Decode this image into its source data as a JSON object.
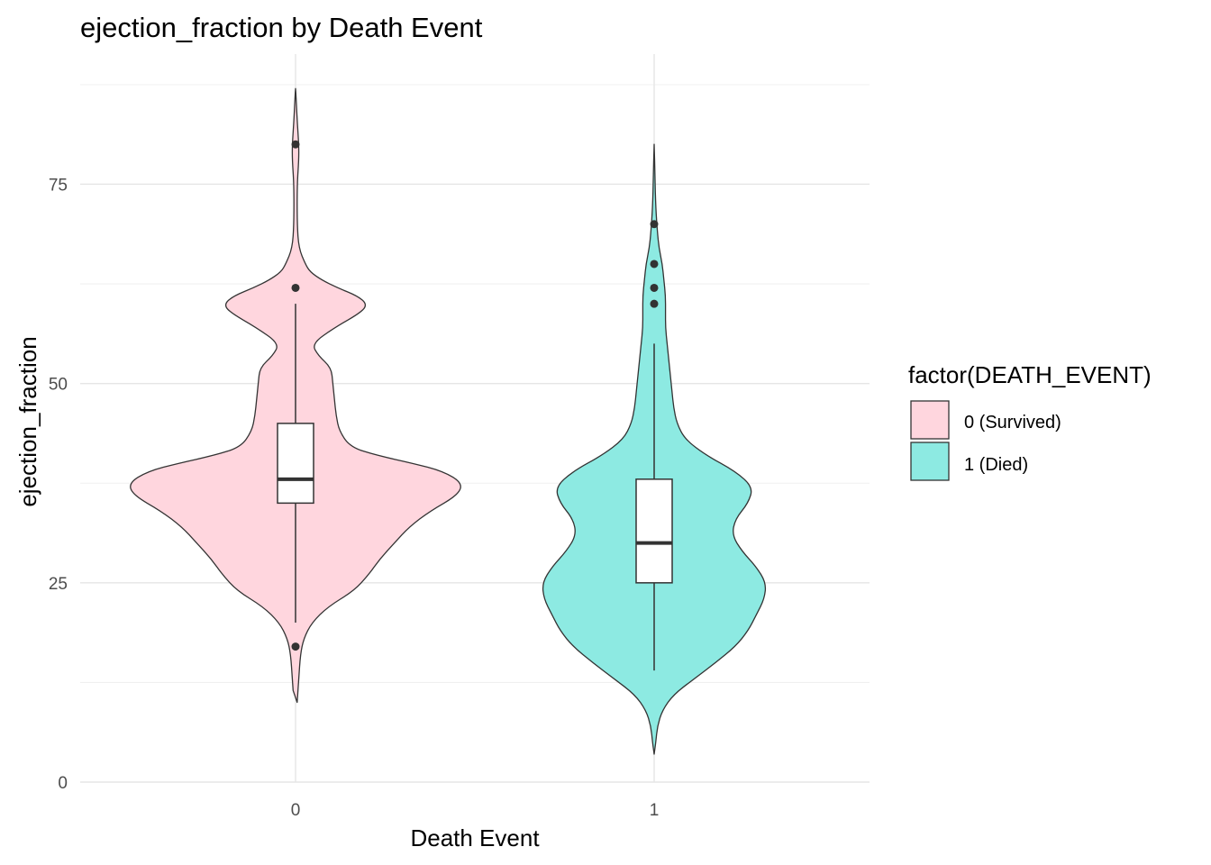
{
  "chart_data": {
    "type": "violin",
    "title": "ejection_fraction by Death Event",
    "xlabel": "Death Event",
    "ylabel": "ejection_fraction",
    "ylim": [
      0,
      87
    ],
    "y_ticks": [
      "0",
      "25",
      "50",
      "75"
    ],
    "categories": [
      "0",
      "1"
    ],
    "legend": {
      "title": "factor(DEATH_EVENT)",
      "position": "right",
      "entries": [
        {
          "label": "0 (Survived)",
          "color": "#F8766D"
        },
        {
          "label": "1 (Died)",
          "color": "#00BFC4"
        }
      ]
    },
    "grid": true,
    "series": [
      {
        "category": "0",
        "fill": "#FFD6DE",
        "box": {
          "min": 20,
          "q1": 35,
          "median": 38,
          "q3": 45,
          "max": 60
        },
        "outliers": [
          80,
          62,
          17
        ],
        "density_profile": [
          [
            10,
            0.01
          ],
          [
            13,
            0.02
          ],
          [
            16,
            0.03
          ],
          [
            18,
            0.05
          ],
          [
            20,
            0.1
          ],
          [
            22,
            0.2
          ],
          [
            24,
            0.36
          ],
          [
            26,
            0.45
          ],
          [
            28,
            0.52
          ],
          [
            30,
            0.61
          ],
          [
            32,
            0.7
          ],
          [
            34,
            0.83
          ],
          [
            36,
            1.0
          ],
          [
            37.5,
            1.03
          ],
          [
            39,
            0.91
          ],
          [
            40,
            0.72
          ],
          [
            41,
            0.5
          ],
          [
            42,
            0.34
          ],
          [
            44,
            0.27
          ],
          [
            46,
            0.25
          ],
          [
            48,
            0.24
          ],
          [
            50,
            0.23
          ],
          [
            52,
            0.22
          ],
          [
            53.5,
            0.14
          ],
          [
            55,
            0.1
          ],
          [
            57,
            0.24
          ],
          [
            59,
            0.41
          ],
          [
            60,
            0.44
          ],
          [
            61,
            0.38
          ],
          [
            62,
            0.26
          ],
          [
            63,
            0.16
          ],
          [
            64,
            0.09
          ],
          [
            65,
            0.06
          ],
          [
            67,
            0.02
          ],
          [
            70,
            0.01
          ],
          [
            75,
            0.01
          ],
          [
            78,
            0.02
          ],
          [
            80,
            0.02
          ],
          [
            83,
            0.01
          ],
          [
            86,
            0.003
          ],
          [
            87,
            0.0
          ]
        ]
      },
      {
        "category": "1",
        "fill": "#8DEAE2",
        "box": {
          "min": 14,
          "q1": 25,
          "median": 30,
          "q3": 38,
          "max": 55
        },
        "outliers": [
          70,
          65,
          62,
          60
        ],
        "density_profile": [
          [
            3.5,
            0.0
          ],
          [
            5,
            0.01
          ],
          [
            7,
            0.02
          ],
          [
            9,
            0.05
          ],
          [
            11,
            0.12
          ],
          [
            13,
            0.25
          ],
          [
            15,
            0.38
          ],
          [
            17,
            0.5
          ],
          [
            19,
            0.58
          ],
          [
            21,
            0.63
          ],
          [
            23,
            0.68
          ],
          [
            25,
            0.69
          ],
          [
            27,
            0.63
          ],
          [
            29,
            0.54
          ],
          [
            31,
            0.48
          ],
          [
            33,
            0.5
          ],
          [
            35,
            0.58
          ],
          [
            37,
            0.61
          ],
          [
            39,
            0.5
          ],
          [
            41,
            0.32
          ],
          [
            43,
            0.19
          ],
          [
            45,
            0.14
          ],
          [
            47,
            0.12
          ],
          [
            49,
            0.11
          ],
          [
            51,
            0.1
          ],
          [
            53,
            0.09
          ],
          [
            55,
            0.08
          ],
          [
            57,
            0.07
          ],
          [
            59,
            0.07
          ],
          [
            61,
            0.07
          ],
          [
            63,
            0.06
          ],
          [
            65,
            0.05
          ],
          [
            67,
            0.03
          ],
          [
            69,
            0.02
          ],
          [
            72,
            0.01
          ],
          [
            76,
            0.005
          ],
          [
            80,
            0.0
          ]
        ]
      }
    ]
  }
}
